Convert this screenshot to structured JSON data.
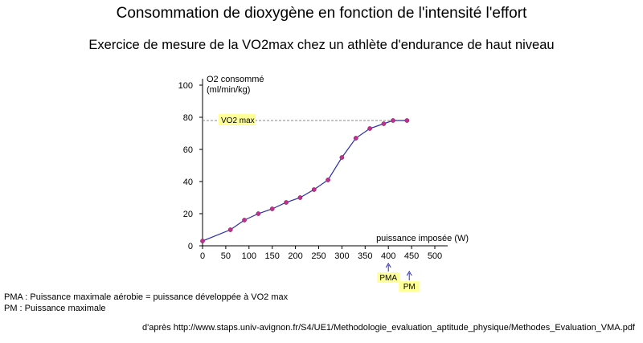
{
  "header": {
    "title": "Consommation de dioxygène en fonction de l'intensité l'effort",
    "subtitle": "Exercice de mesure de la VO2max chez un athlète d'endurance de haut niveau"
  },
  "chart_data": {
    "type": "line",
    "ylabel_line1": "O2 consommé",
    "ylabel_line2": "(ml/min/kg)",
    "xlabel": "puissance imposée (W)",
    "xlim": [
      0,
      500
    ],
    "ylim": [
      0,
      100
    ],
    "x_ticks": [
      0,
      50,
      100,
      150,
      200,
      250,
      300,
      350,
      400,
      450,
      500
    ],
    "y_ticks": [
      0,
      20,
      40,
      60,
      80,
      100
    ],
    "grid": false,
    "series": [
      {
        "x": [
          0,
          60,
          90,
          120,
          150,
          180,
          210,
          240,
          270,
          300,
          330,
          360,
          390,
          410,
          440
        ],
        "y": [
          3,
          10,
          16,
          20,
          23,
          27,
          30,
          35,
          41,
          55,
          67,
          73,
          76,
          78,
          78
        ]
      }
    ],
    "colors": {
      "line": "#2b2bb0",
      "marker": "#c0308f",
      "reference_line": "#888888",
      "highlight": "#ffff99"
    },
    "annotations": {
      "vo2max": {
        "label": "VO2 max",
        "y": 78
      },
      "pma": {
        "label": "PMA",
        "x": 400
      },
      "pm": {
        "label": "PM",
        "x": 445
      }
    }
  },
  "notes": {
    "line1": "PMA : Puissance maximale aérobie = puissance développée à VO2 max",
    "line2": "PM : Puissance maximale"
  },
  "source": "d'après http://www.staps.univ-avignon.fr/S4/UE1/Methodologie_evaluation_aptitude_physique/Methodes_Evaluation_VMA.pdf"
}
